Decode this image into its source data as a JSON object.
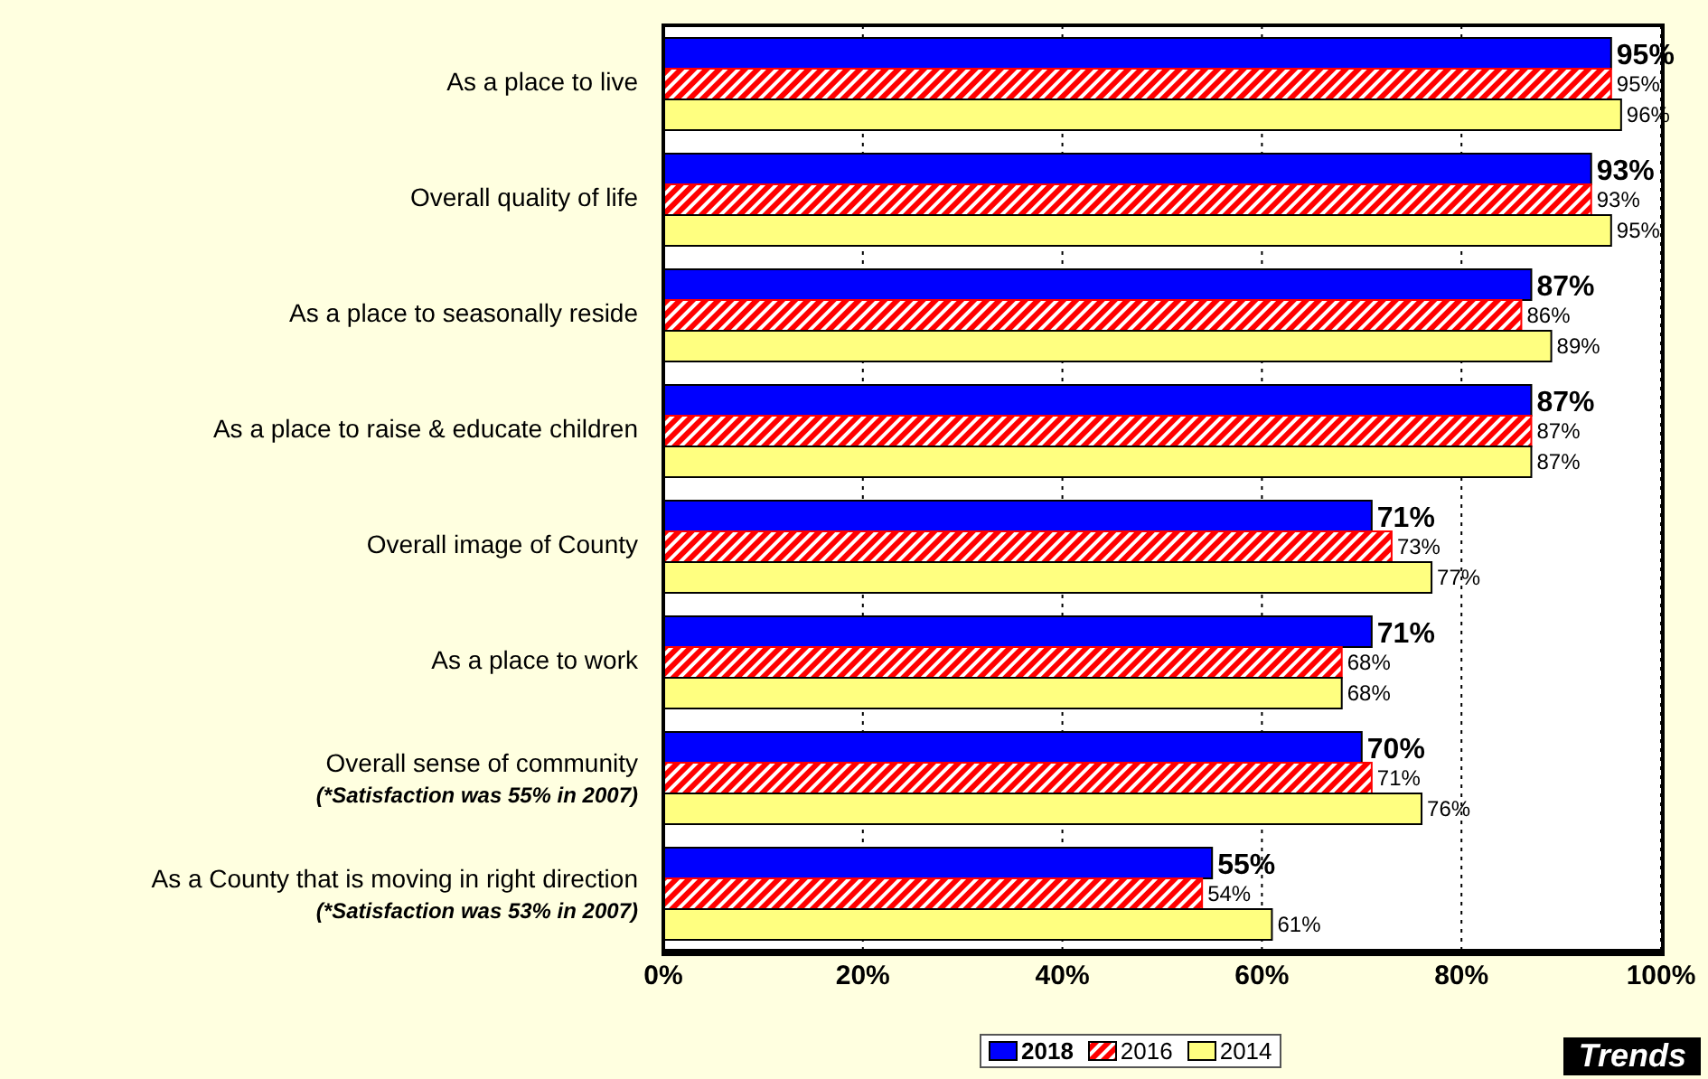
{
  "chart_data": {
    "type": "bar",
    "orientation": "horizontal",
    "categories": [
      "As a place to live",
      "Overall quality of life",
      "As a place to seasonally reside",
      "As a place to raise & educate children",
      "Overall image of County",
      "As a place to work",
      "Overall sense of community\n(*Satisfaction was 55% in 2007)",
      "As a County that is moving in right direction\n(*Satisfaction was 53% in 2007)"
    ],
    "series": [
      {
        "name": "2018",
        "color": "#0000ff",
        "values": [
          95,
          93,
          87,
          87,
          71,
          71,
          70,
          55
        ],
        "value_labels": [
          "95%",
          "93%",
          "87%",
          "87%",
          "71%",
          "71%",
          "70%",
          "55%"
        ]
      },
      {
        "name": "2016",
        "color": "#ff0000",
        "values": [
          95,
          93,
          86,
          87,
          73,
          68,
          71,
          54
        ],
        "value_labels": [
          "95%",
          "93%",
          "86%",
          "87%",
          "73%",
          "68%",
          "71%",
          "54%"
        ]
      },
      {
        "name": "2014",
        "color": "#ffff80",
        "values": [
          96,
          95,
          89,
          87,
          77,
          68,
          76,
          61
        ],
        "value_labels": [
          "96%",
          "95%",
          "89%",
          "87%",
          "77%",
          "68%",
          "76%",
          "61%"
        ]
      }
    ],
    "xlim": [
      0,
      100
    ],
    "xticks": [
      {
        "value": 0,
        "label": "0%"
      },
      {
        "value": 20,
        "label": "20%"
      },
      {
        "value": 40,
        "label": "40%"
      },
      {
        "value": 60,
        "label": "60%"
      },
      {
        "value": 80,
        "label": "80%"
      },
      {
        "value": 100,
        "label": "100%"
      }
    ],
    "grid": "x",
    "legend": "bottom",
    "annotations": [
      "Trends"
    ]
  }
}
